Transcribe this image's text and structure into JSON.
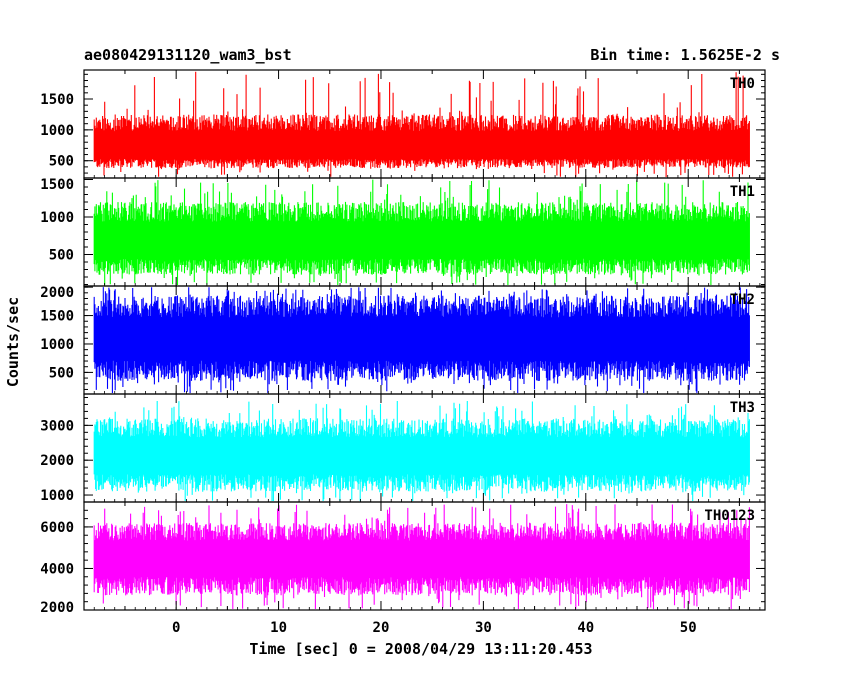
{
  "header": {
    "left_title": "ae080429131120_wam3_bst",
    "right_title": "Bin time: 1.5625E-2 s"
  },
  "axes": {
    "xlabel": "Time [sec] 0 = 2008/04/29 13:11:20.453",
    "ylabel": "Counts/sec"
  },
  "chart_data": {
    "type": "line",
    "title": "ae080429131120_wam3_bst",
    "subtitle": "Bin time: 1.5625E-2 s",
    "xlabel": "Time [sec] 0 = 2008/04/29 13:11:20.453",
    "ylabel": "Counts/sec",
    "xlim": [
      -9,
      57.5
    ],
    "x_range_data": [
      -8,
      56
    ],
    "bin_time": 0.015625,
    "x_ticks": [
      0,
      10,
      20,
      30,
      40,
      50
    ],
    "grid": false,
    "legend": "none",
    "panels": [
      {
        "name": "TH0",
        "color": "#ff0000",
        "ylim": [
          220,
          1970
        ],
        "y_ticks": [
          500,
          1000,
          1500
        ],
        "mean": 650,
        "noise_low": 380,
        "noise_high": 1250,
        "spike_max": 1970
      },
      {
        "name": "TH1",
        "color": "#00ff00",
        "ylim": [
          80,
          1520
        ],
        "y_ticks": [
          500,
          1000,
          1500
        ],
        "mean": 620,
        "noise_low": 230,
        "noise_high": 1200,
        "spike_max": 1500
      },
      {
        "name": "TH2",
        "color": "#0000ff",
        "ylim": [
          120,
          2020
        ],
        "y_ticks": [
          500,
          1000,
          1500,
          2000
        ],
        "mean": 1000,
        "noise_low": 350,
        "noise_high": 1850,
        "spike_max": 2000
      },
      {
        "name": "TH3",
        "color": "#00ffff",
        "ylim": [
          800,
          3900
        ],
        "y_ticks": [
          1000,
          2000,
          3000
        ],
        "mean": 2000,
        "noise_low": 1100,
        "noise_high": 3200,
        "spike_max": 3700
      },
      {
        "name": "TH0123",
        "color": "#ff00ff",
        "ylim": [
          2000,
          7200
        ],
        "y_ticks": [
          2000,
          4000,
          6000
        ],
        "mean": 4300,
        "noise_low": 2700,
        "noise_high": 6200,
        "spike_max": 7100
      }
    ]
  }
}
